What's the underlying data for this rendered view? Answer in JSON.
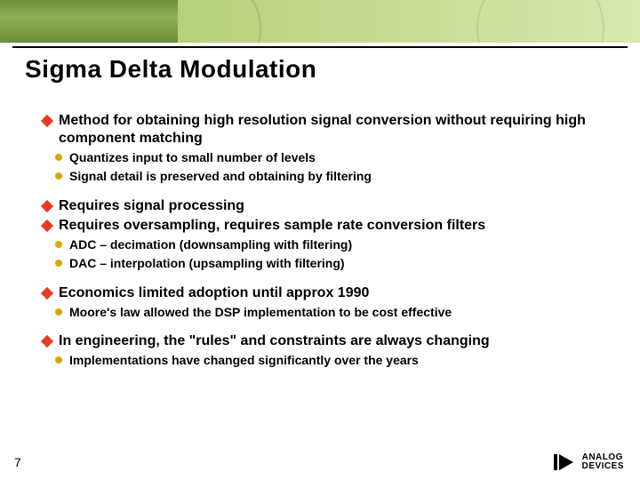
{
  "colors": {
    "diamond": "#e63b1f",
    "dot": "#d9a800",
    "text": "#000000"
  },
  "title": "Sigma Delta Modulation",
  "bullets": [
    {
      "text": "Method for obtaining high resolution signal conversion without requiring high component matching",
      "sub": [
        "Quantizes input to small number of levels",
        "Signal detail is preserved and obtaining by filtering"
      ]
    },
    {
      "text": "Requires signal processing",
      "sub": []
    },
    {
      "text": "Requires oversampling, requires sample rate conversion filters",
      "tight": true,
      "sub": [
        "ADC – decimation (downsampling with filtering)",
        "DAC – interpolation (upsampling with filtering)"
      ]
    },
    {
      "text": "Economics limited adoption until approx 1990",
      "sub": [
        "Moore's law allowed the DSP implementation to be cost effective"
      ]
    },
    {
      "text": "In engineering, the \"rules\" and constraints are always changing",
      "sub": [
        "Implementations have changed significantly over the years"
      ]
    }
  ],
  "page_number": "7",
  "logo": {
    "line1": "ANALOG",
    "line2": "DEVICES"
  }
}
